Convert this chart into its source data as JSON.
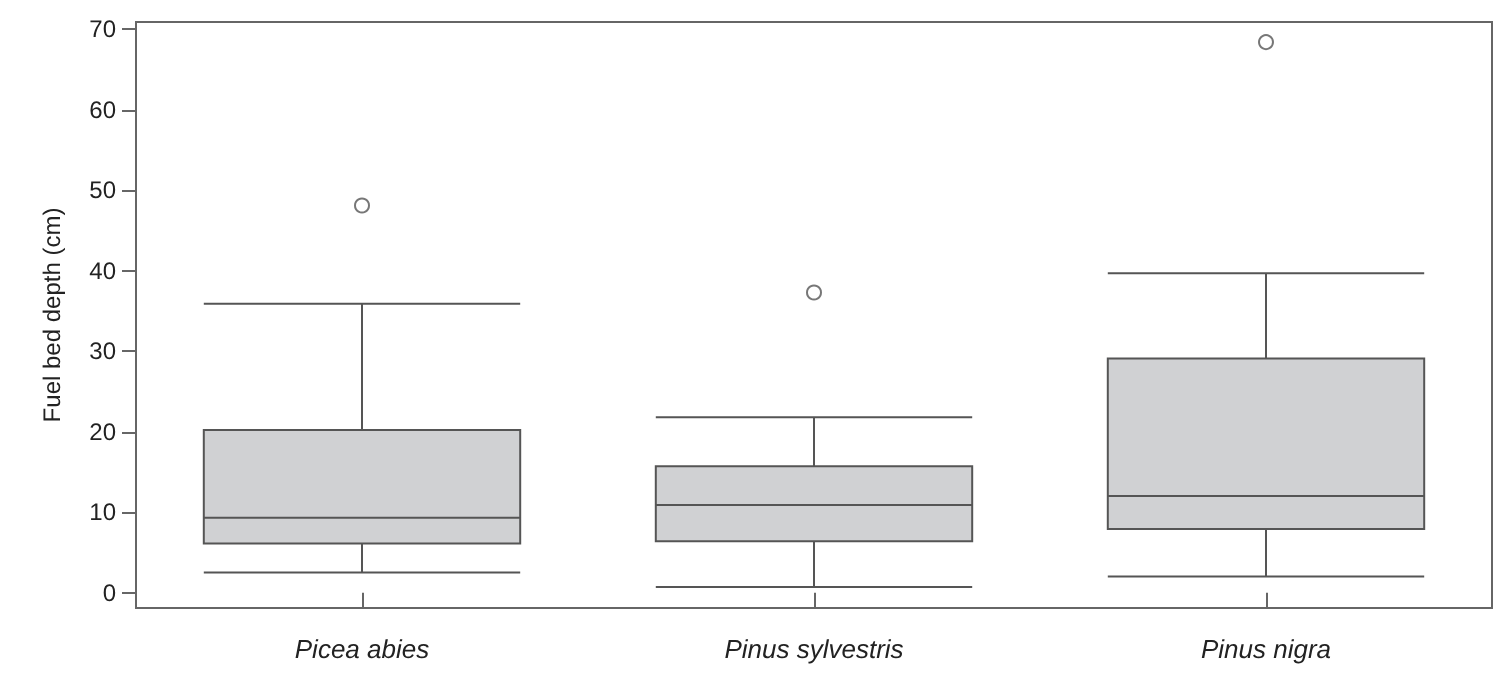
{
  "chart_data": {
    "type": "box",
    "ylabel": "Fuel bed depth (cm)",
    "categories": [
      "Picea abies",
      "Pinus sylvestris",
      "Pinus nigra"
    ],
    "color": "#d0d1d3",
    "boxes": [
      {
        "low": 2.5,
        "q1": 6.1,
        "median": 9.3,
        "q3": 20.2,
        "high": 35.9,
        "outliers": [
          48.1
        ]
      },
      {
        "low": 0.7,
        "q1": 6.4,
        "median": 10.9,
        "q3": 15.7,
        "high": 21.8,
        "outliers": [
          37.3
        ]
      },
      {
        "low": 2.0,
        "q1": 7.9,
        "median": 12.0,
        "q3": 29.1,
        "high": 39.7,
        "outliers": [
          68.4
        ]
      }
    ],
    "ylim": [
      -1.9,
      70.9
    ],
    "yticks": [
      0,
      10,
      20,
      30,
      40,
      50,
      60,
      70
    ],
    "grid": false
  }
}
